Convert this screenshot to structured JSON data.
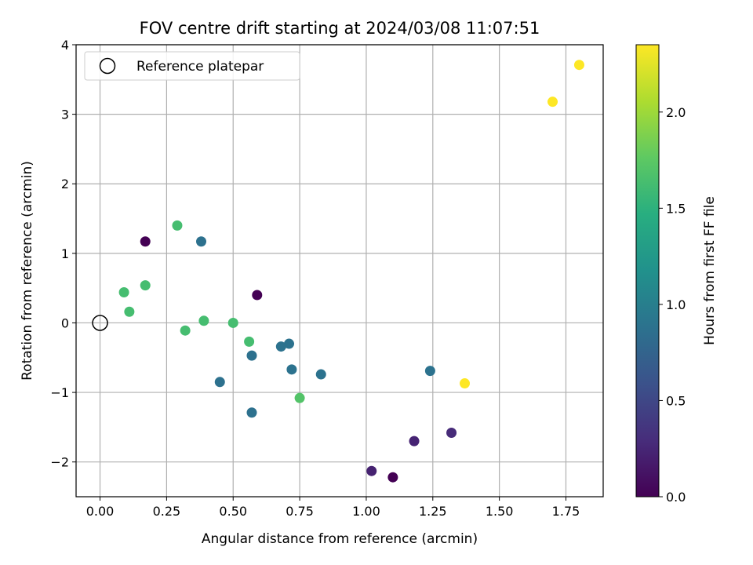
{
  "chart_data": {
    "type": "scatter",
    "title": "FOV centre drift starting at 2024/03/08 11:07:51",
    "xlabel": "Angular distance from reference (arcmin)",
    "ylabel": "Rotation from reference (arcmin)",
    "xlim": [
      -0.09,
      1.89
    ],
    "ylim": [
      -2.5,
      4.0
    ],
    "xticks": [
      "0.00",
      "0.25",
      "0.50",
      "0.75",
      "1.00",
      "1.25",
      "1.50",
      "1.75"
    ],
    "yticks": [
      "−2",
      "−1",
      "0",
      "1",
      "2",
      "3",
      "4"
    ],
    "grid": true,
    "legend": {
      "position": "top-left",
      "entries": [
        "Reference platepar"
      ]
    },
    "reference_point": {
      "x": 0.0,
      "y": 0.0
    },
    "colorbar": {
      "label": "Hours from first FF file",
      "range": [
        0.0,
        2.35
      ],
      "ticks": [
        "0.0",
        "0.5",
        "1.0",
        "1.5",
        "2.0"
      ],
      "colormap": "viridis"
    },
    "points": [
      {
        "x": 0.17,
        "y": 1.17,
        "c": 0.0
      },
      {
        "x": 0.59,
        "y": 0.4,
        "c": 0.0
      },
      {
        "x": 1.1,
        "y": -2.22,
        "c": 0.0
      },
      {
        "x": 1.02,
        "y": -2.13,
        "c": 0.22
      },
      {
        "x": 1.18,
        "y": -1.7,
        "c": 0.23
      },
      {
        "x": 1.32,
        "y": -1.58,
        "c": 0.28
      },
      {
        "x": 0.38,
        "y": 1.17,
        "c": 0.87
      },
      {
        "x": 0.45,
        "y": -0.85,
        "c": 0.87
      },
      {
        "x": 0.57,
        "y": -0.47,
        "c": 0.87
      },
      {
        "x": 0.57,
        "y": -1.29,
        "c": 0.87
      },
      {
        "x": 0.68,
        "y": -0.34,
        "c": 0.88
      },
      {
        "x": 0.71,
        "y": -0.3,
        "c": 0.88
      },
      {
        "x": 0.72,
        "y": -0.67,
        "c": 0.88
      },
      {
        "x": 0.83,
        "y": -0.74,
        "c": 0.88
      },
      {
        "x": 1.24,
        "y": -0.69,
        "c": 0.88
      },
      {
        "x": 0.09,
        "y": 0.44,
        "c": 1.63
      },
      {
        "x": 0.11,
        "y": 0.16,
        "c": 1.63
      },
      {
        "x": 0.17,
        "y": 0.54,
        "c": 1.63
      },
      {
        "x": 0.29,
        "y": 1.4,
        "c": 1.63
      },
      {
        "x": 0.32,
        "y": -0.11,
        "c": 1.63
      },
      {
        "x": 0.39,
        "y": 0.03,
        "c": 1.63
      },
      {
        "x": 0.5,
        "y": 0.0,
        "c": 1.63
      },
      {
        "x": 0.56,
        "y": -0.27,
        "c": 1.63
      },
      {
        "x": 0.75,
        "y": -1.08,
        "c": 1.7
      },
      {
        "x": 1.37,
        "y": -0.87,
        "c": 2.35
      },
      {
        "x": 1.7,
        "y": 3.18,
        "c": 2.35
      },
      {
        "x": 1.8,
        "y": 3.71,
        "c": 2.35
      }
    ]
  }
}
